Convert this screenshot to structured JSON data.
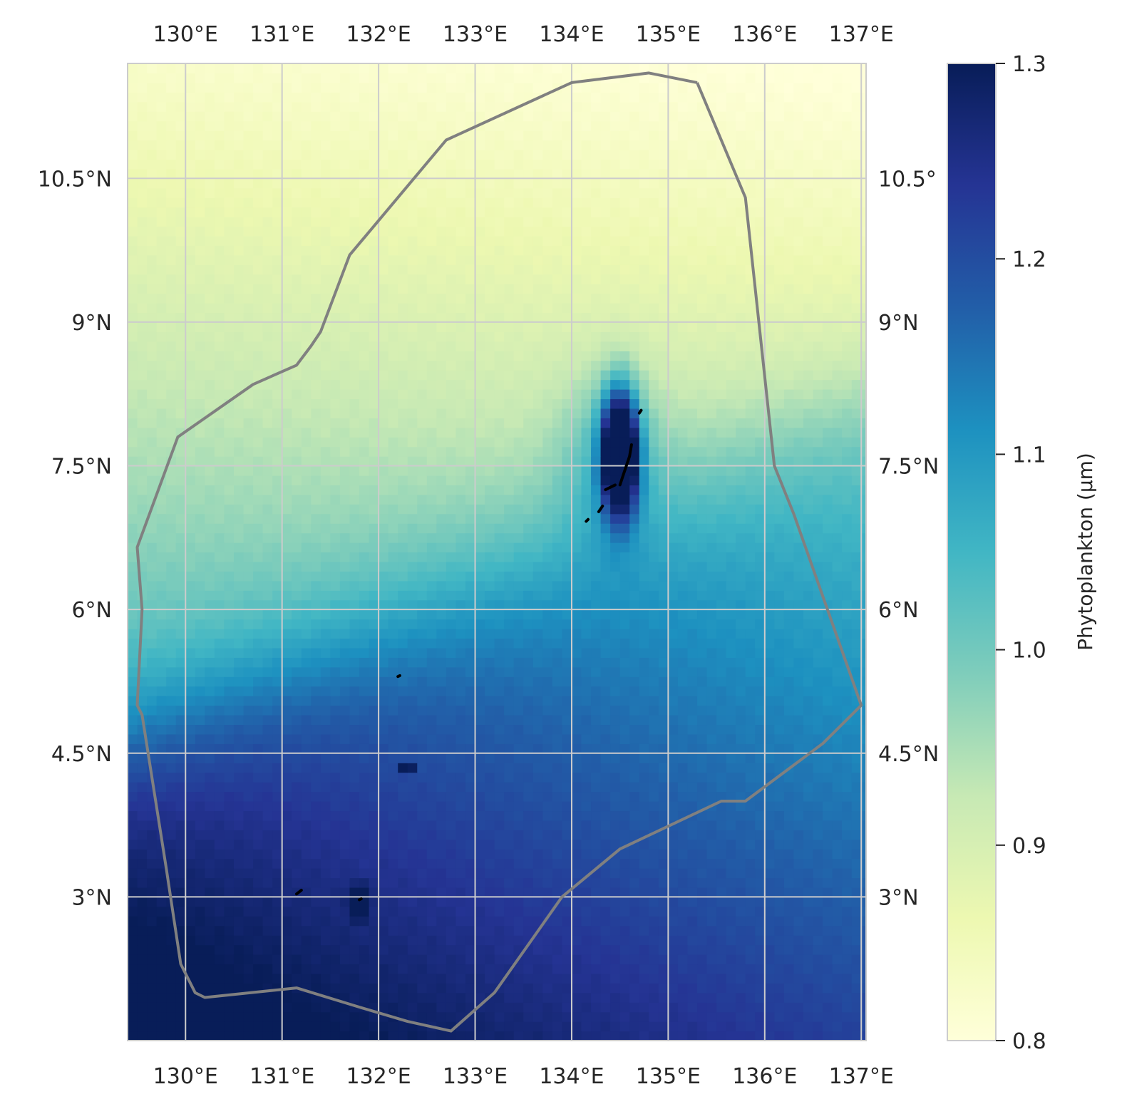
{
  "map": {
    "variable_label": "Phytoplankton (μm)",
    "colormap": "YlGnBu",
    "colormap_stops": [
      "#ffffd9",
      "#edf8b1",
      "#c7e9b4",
      "#7fcdbb",
      "#41b6c4",
      "#1d91c0",
      "#225ea8",
      "#253494",
      "#081d58"
    ],
    "value_range": [
      0.8,
      1.3
    ],
    "lon_range_deg": [
      129.4,
      137.05
    ],
    "lat_range_deg": [
      1.5,
      11.7
    ],
    "outline_color": "#808080",
    "gridline_color": "#cccccc",
    "island_color": "#000000",
    "lon_ticks": [
      {
        "value": 130,
        "label": "130°E"
      },
      {
        "value": 131,
        "label": "131°E"
      },
      {
        "value": 132,
        "label": "132°E"
      },
      {
        "value": 133,
        "label": "133°E"
      },
      {
        "value": 134,
        "label": "134°E"
      },
      {
        "value": 135,
        "label": "135°E"
      },
      {
        "value": 136,
        "label": "136°E"
      },
      {
        "value": 137,
        "label": "137°E"
      }
    ],
    "lat_ticks": [
      {
        "value": 3.0,
        "label": "3°N"
      },
      {
        "value": 4.5,
        "label": "4.5°N"
      },
      {
        "value": 6.0,
        "label": "6°N"
      },
      {
        "value": 7.5,
        "label": "7.5°N"
      },
      {
        "value": 9.0,
        "label": "9°N"
      },
      {
        "value": 10.5,
        "label": "10.5°N"
      }
    ],
    "right_lat_tick_labels": [
      "3°N",
      "4.5°N",
      "6°N",
      "7.5°N",
      "9°N",
      "10.5°"
    ],
    "colorbar_ticks": [
      {
        "value": 0.8,
        "label": "0.8"
      },
      {
        "value": 0.9,
        "label": "0.9"
      },
      {
        "value": 1.0,
        "label": "1.0"
      },
      {
        "value": 1.1,
        "label": "1.1"
      },
      {
        "value": 1.2,
        "label": "1.2"
      },
      {
        "value": 1.3,
        "label": "1.3"
      }
    ],
    "eez_outline_lonlat": [
      [
        135.3,
        11.5
      ],
      [
        135.8,
        10.3
      ],
      [
        136.1,
        7.5
      ],
      [
        136.3,
        7.0
      ],
      [
        137.0,
        5.0
      ],
      [
        136.6,
        4.6
      ],
      [
        136.2,
        4.3
      ],
      [
        135.8,
        4.0
      ],
      [
        135.55,
        4.0
      ],
      [
        134.5,
        3.5
      ],
      [
        133.9,
        3.0
      ],
      [
        133.2,
        2.0
      ],
      [
        132.75,
        1.6
      ],
      [
        132.3,
        1.7
      ],
      [
        131.8,
        1.85
      ],
      [
        131.15,
        2.05
      ],
      [
        130.2,
        1.95
      ],
      [
        130.1,
        2.0
      ],
      [
        129.95,
        2.3
      ],
      [
        129.8,
        3.3
      ],
      [
        129.55,
        4.9
      ],
      [
        129.5,
        5.0
      ],
      [
        129.55,
        6.0
      ],
      [
        129.5,
        6.65
      ],
      [
        129.92,
        7.8
      ],
      [
        130.7,
        8.35
      ],
      [
        131.15,
        8.55
      ],
      [
        131.3,
        8.75
      ],
      [
        131.4,
        8.9
      ],
      [
        131.7,
        9.7
      ],
      [
        132.7,
        10.9
      ],
      [
        134.0,
        11.5
      ],
      [
        134.8,
        11.6
      ],
      [
        135.3,
        11.5
      ]
    ],
    "islands_lonlat": [
      [
        [
          134.5,
          7.3
        ],
        [
          134.55,
          7.45
        ],
        [
          134.6,
          7.6
        ],
        [
          134.62,
          7.72
        ]
      ],
      [
        [
          134.28,
          7.02
        ],
        [
          134.32,
          7.08
        ]
      ],
      [
        [
          134.35,
          7.25
        ],
        [
          134.45,
          7.3
        ]
      ],
      [
        [
          134.15,
          6.92
        ],
        [
          134.17,
          6.94
        ]
      ],
      [
        [
          134.7,
          8.05
        ],
        [
          134.72,
          8.08
        ]
      ],
      [
        [
          131.15,
          3.03
        ],
        [
          131.2,
          3.07
        ]
      ],
      [
        [
          131.8,
          2.97
        ],
        [
          131.82,
          2.98
        ]
      ],
      [
        [
          132.2,
          5.3
        ],
        [
          132.22,
          5.31
        ]
      ]
    ]
  }
}
